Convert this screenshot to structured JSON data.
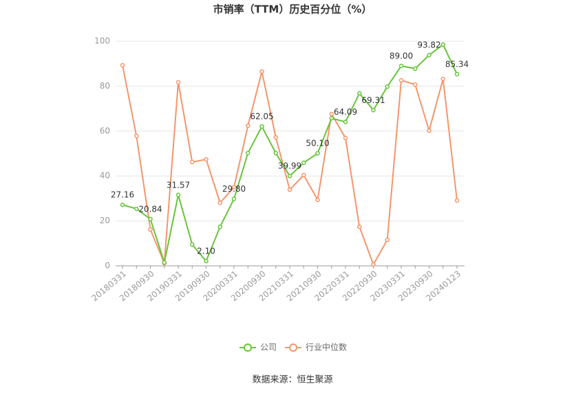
{
  "chart_data": {
    "type": "line",
    "title": "市销率（TTM）历史百分位（%）",
    "source": "数据来源：恒生聚源",
    "categories": [
      "20180331",
      null,
      "20180930",
      null,
      "20190331",
      null,
      "20190930",
      null,
      "20200331",
      null,
      "20200930",
      null,
      "20210331",
      null,
      "20210930",
      null,
      "20220331",
      null,
      "20220930",
      null,
      "20230331",
      null,
      "20230930",
      null,
      "20240123"
    ],
    "ylim": [
      0,
      100
    ],
    "yticks": [
      0,
      20,
      40,
      60,
      80,
      100
    ],
    "grid": true,
    "series": [
      {
        "name": "公司",
        "color": "#66c43a",
        "values": [
          27.16,
          25.4,
          20.84,
          1.5,
          31.57,
          9.5,
          2.1,
          17.4,
          29.8,
          50.2,
          62.05,
          50.2,
          39.99,
          45.9,
          50.1,
          65.7,
          64.09,
          76.8,
          69.31,
          79.8,
          89.0,
          87.8,
          93.82,
          98.5,
          85.34
        ],
        "value_labels": [
          "27.16",
          null,
          "20.84",
          null,
          "31.57",
          null,
          "2.10",
          null,
          "29.80",
          null,
          "62.05",
          null,
          "39.99",
          null,
          "50.10",
          null,
          "64.09",
          null,
          "69.31",
          null,
          "89.00",
          null,
          "93.82",
          null,
          "85.34"
        ]
      },
      {
        "name": "行业中位数",
        "color": "#f4956a",
        "values": [
          89.3,
          57.8,
          16.2,
          1.2,
          81.7,
          46.2,
          47.4,
          28.1,
          35.0,
          62.4,
          86.5,
          57.2,
          33.9,
          40.4,
          29.4,
          67.6,
          56.9,
          17.4,
          0.6,
          11.6,
          82.6,
          80.7,
          60.2,
          83.2,
          29.1
        ]
      }
    ]
  }
}
